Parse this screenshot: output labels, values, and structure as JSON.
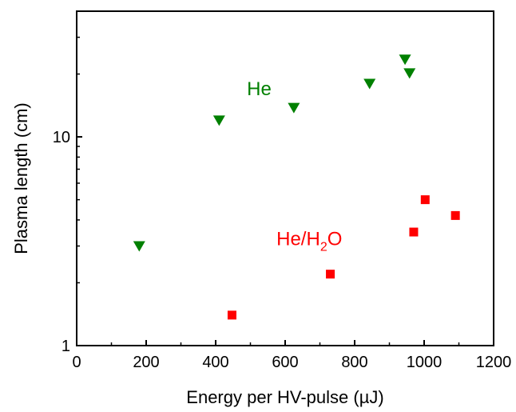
{
  "chart_data": {
    "type": "scatter",
    "title": "",
    "xlabel": "Energy per HV-pulse (µJ)",
    "ylabel": "Plasma length (cm)",
    "xlim": [
      0,
      1200
    ],
    "ylim": [
      1,
      40
    ],
    "yscale": "log",
    "grid": false,
    "x_ticks": [
      0,
      200,
      400,
      600,
      800,
      1000,
      1200
    ],
    "x_tick_labels": [
      "0",
      "200",
      "400",
      "600",
      "800",
      "1000",
      "1200"
    ],
    "y_ticks": [
      1,
      10
    ],
    "y_tick_labels": [
      "1",
      "10"
    ],
    "series": [
      {
        "name": "He",
        "marker": "triangle-down",
        "color": "#008000",
        "points": [
          {
            "x": 180,
            "y": 3.0
          },
          {
            "x": 410,
            "y": 12.0
          },
          {
            "x": 625,
            "y": 13.8
          },
          {
            "x": 843,
            "y": 18.0
          },
          {
            "x": 945,
            "y": 23.5
          },
          {
            "x": 958,
            "y": 20.2
          }
        ]
      },
      {
        "name": "He/H2O",
        "marker": "square",
        "color": "#ff0000",
        "points": [
          {
            "x": 447,
            "y": 1.4
          },
          {
            "x": 730,
            "y": 2.2
          },
          {
            "x": 970,
            "y": 3.5
          },
          {
            "x": 1003,
            "y": 5.0
          },
          {
            "x": 1090,
            "y": 4.2
          }
        ]
      }
    ],
    "annotations": [
      {
        "text": "He",
        "series": "He",
        "x": 490,
        "y": 17.0
      },
      {
        "text_main": "He/H",
        "text_sub": "2",
        "text_tail": "O",
        "series": "He/H2O",
        "x": 575,
        "y": 3.25
      }
    ]
  }
}
